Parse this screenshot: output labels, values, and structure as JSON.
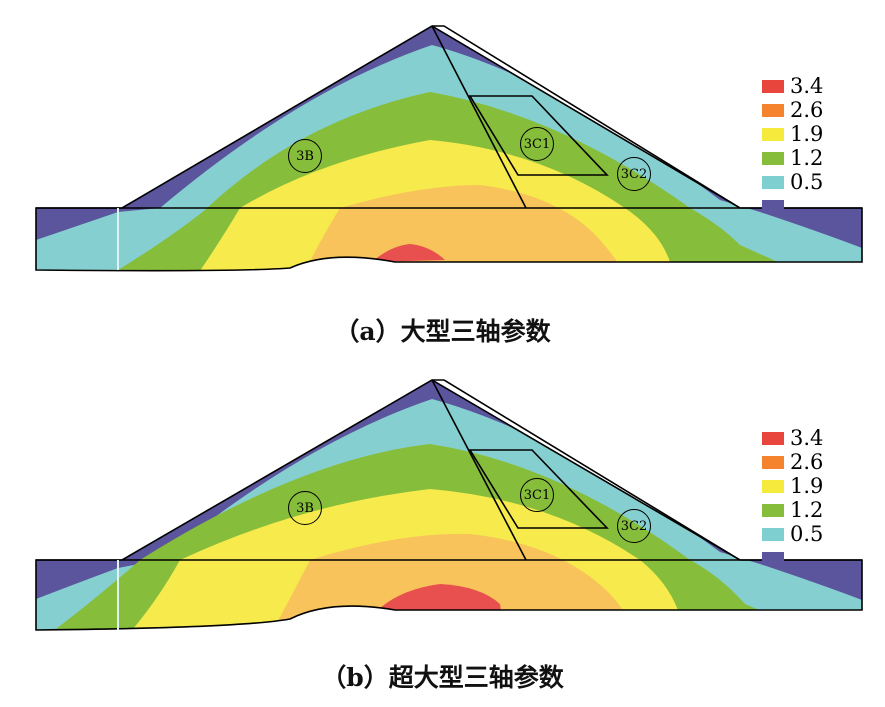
{
  "panels": [
    {
      "caption": "（a）大型三轴参数",
      "zones": {
        "z3b": "3B",
        "z3c1": "3C1",
        "z3c2": "3C2"
      },
      "legend": [
        {
          "label": "3.4",
          "color": "#e8453c"
        },
        {
          "label": "2.6",
          "color": "#f5832e"
        },
        {
          "label": "1.9",
          "color": "#f6ea3c"
        },
        {
          "label": "1.2",
          "color": "#86bd3a"
        },
        {
          "label": "0.5",
          "color": "#7ecfd0"
        },
        {
          "label": "",
          "color": "#5b559d"
        }
      ]
    },
    {
      "caption": "（b）超大型三轴参数",
      "zones": {
        "z3b": "3B",
        "z3c1": "3C1",
        "z3c2": "3C2"
      },
      "legend": [
        {
          "label": "3.4",
          "color": "#e8453c"
        },
        {
          "label": "2.6",
          "color": "#f5832e"
        },
        {
          "label": "1.9",
          "color": "#f6ea3c"
        },
        {
          "label": "1.2",
          "color": "#86bd3a"
        },
        {
          "label": "0.5",
          "color": "#7ecfd0"
        },
        {
          "label": "",
          "color": "#5b559d"
        }
      ]
    }
  ],
  "colors": {
    "purple": "#5b559d",
    "cyan": "#86cfd0",
    "green": "#86bd3a",
    "yellow": "#f6ea4c",
    "orange": "#f8c35a",
    "red": "#e85050",
    "outline": "#000000"
  }
}
